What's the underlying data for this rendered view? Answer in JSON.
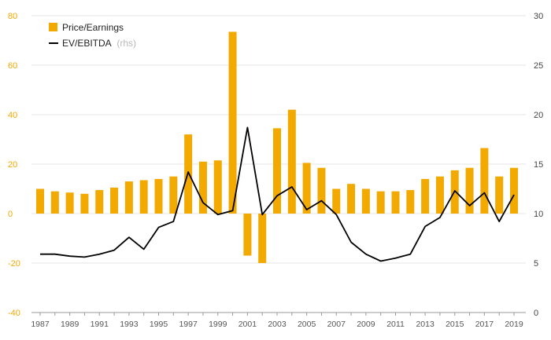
{
  "chart_data": {
    "type": "bar+line",
    "x": [
      1987,
      1988,
      1989,
      1990,
      1991,
      1992,
      1993,
      1994,
      1995,
      1996,
      1997,
      1998,
      1999,
      2000,
      2001,
      2002,
      2003,
      2004,
      2005,
      2006,
      2007,
      2008,
      2009,
      2010,
      2011,
      2012,
      2013,
      2014,
      2015,
      2016,
      2017,
      2018,
      2019
    ],
    "x_tick_labels": [
      "1987",
      "1989",
      "1991",
      "1993",
      "1995",
      "1997",
      "1999",
      "2001",
      "2003",
      "2005",
      "2007",
      "2009",
      "2011",
      "2013",
      "2015",
      "2017",
      "2019"
    ],
    "series": [
      {
        "name": "Price/Earnings",
        "type": "bar",
        "axis": "left",
        "color": "#f2a900",
        "values": [
          10,
          9,
          8.5,
          8,
          9.5,
          10.5,
          13,
          13.5,
          14,
          15,
          32,
          21,
          21.5,
          73.5,
          -17,
          -20,
          34.5,
          42,
          20.5,
          18.5,
          10,
          12,
          10,
          9,
          9,
          9.5,
          14,
          15,
          17.5,
          18.5,
          26.5,
          15,
          18.5
        ]
      },
      {
        "name": "EV/EBITDA",
        "name_suffix": "(rhs)",
        "type": "line",
        "axis": "right",
        "color": "#000000",
        "values": [
          5.9,
          5.9,
          5.7,
          5.6,
          5.9,
          6.3,
          7.6,
          6.4,
          8.6,
          9.2,
          14.2,
          11.1,
          9.9,
          10.3,
          18.7,
          9.9,
          11.8,
          12.7,
          10.4,
          11.3,
          9.9,
          7.1,
          5.9,
          5.2,
          5.5,
          5.9,
          8.7,
          9.6,
          12.3,
          10.8,
          12.1,
          9.2,
          11.9
        ]
      }
    ],
    "y_left": {
      "ylim": [
        -40,
        80
      ],
      "ticks": [
        "80",
        "60",
        "40",
        "20",
        "0",
        "-20",
        "-40"
      ],
      "tick_values": [
        80,
        60,
        40,
        20,
        0,
        -20,
        -40
      ]
    },
    "y_right": {
      "ylim": [
        0,
        30
      ],
      "ticks": [
        "30",
        "25",
        "20",
        "15",
        "10",
        "5",
        "0"
      ],
      "tick_values": [
        30,
        25,
        20,
        15,
        10,
        5,
        0
      ]
    },
    "legend_placement": "top-left",
    "grid": "horizontal",
    "title": "",
    "xlabel": "",
    "ylabel": ""
  },
  "legend": {
    "pe_label": "Price/Earnings",
    "ev_label": "EV/EBITDA",
    "ev_suffix": "(rhs)"
  },
  "colors": {
    "bar": "#f2a900",
    "line": "#000000",
    "grid": "#e6e6e6",
    "axis": "#999999",
    "left_tick_text": "#f2a900",
    "right_tick_text": "#444444"
  }
}
